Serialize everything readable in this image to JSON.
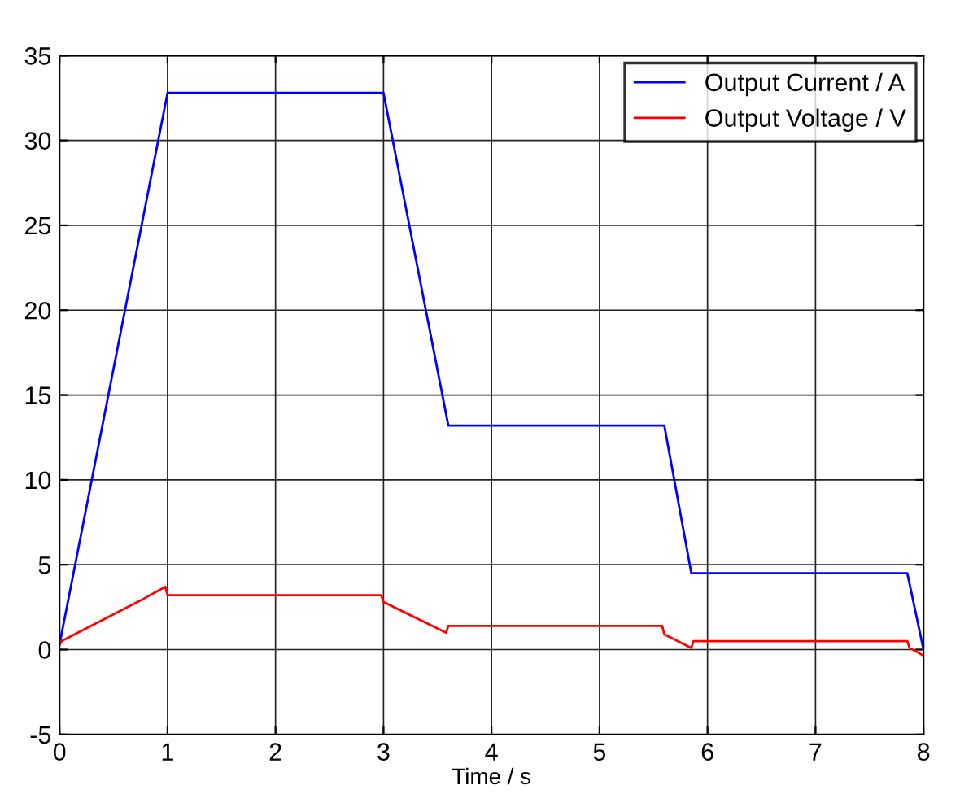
{
  "chart_data": {
    "type": "line",
    "xlabel": "Time / s",
    "xlim": [
      0,
      8
    ],
    "ylim": [
      -5,
      35
    ],
    "xticks": [
      0,
      1,
      2,
      3,
      4,
      5,
      6,
      7,
      8
    ],
    "yticks": [
      -5,
      0,
      5,
      10,
      15,
      20,
      25,
      30,
      35
    ],
    "grid": true,
    "legend": "top right",
    "line_style": "solid",
    "series": [
      {
        "name": "Output Current / A",
        "color": "#0000ff",
        "x": [
          0,
          1,
          3,
          3.6,
          5.6,
          5.85,
          7.85,
          8
        ],
        "values": [
          0.3,
          32.8,
          32.8,
          13.2,
          13.2,
          4.5,
          4.5,
          0
        ]
      },
      {
        "name": "Output Voltage / V",
        "color": "#ff0000",
        "x": [
          0,
          0.02,
          0.78,
          0.98,
          1.0,
          2.98,
          3.0,
          3.58,
          3.6,
          5.58,
          5.6,
          5.85,
          5.87,
          7.85,
          7.87,
          8
        ],
        "values": [
          0.3,
          0.5,
          3.0,
          3.7,
          3.2,
          3.2,
          2.8,
          1.0,
          1.4,
          1.4,
          0.9,
          0.1,
          0.5,
          0.5,
          0.1,
          -0.35
        ]
      }
    ]
  }
}
